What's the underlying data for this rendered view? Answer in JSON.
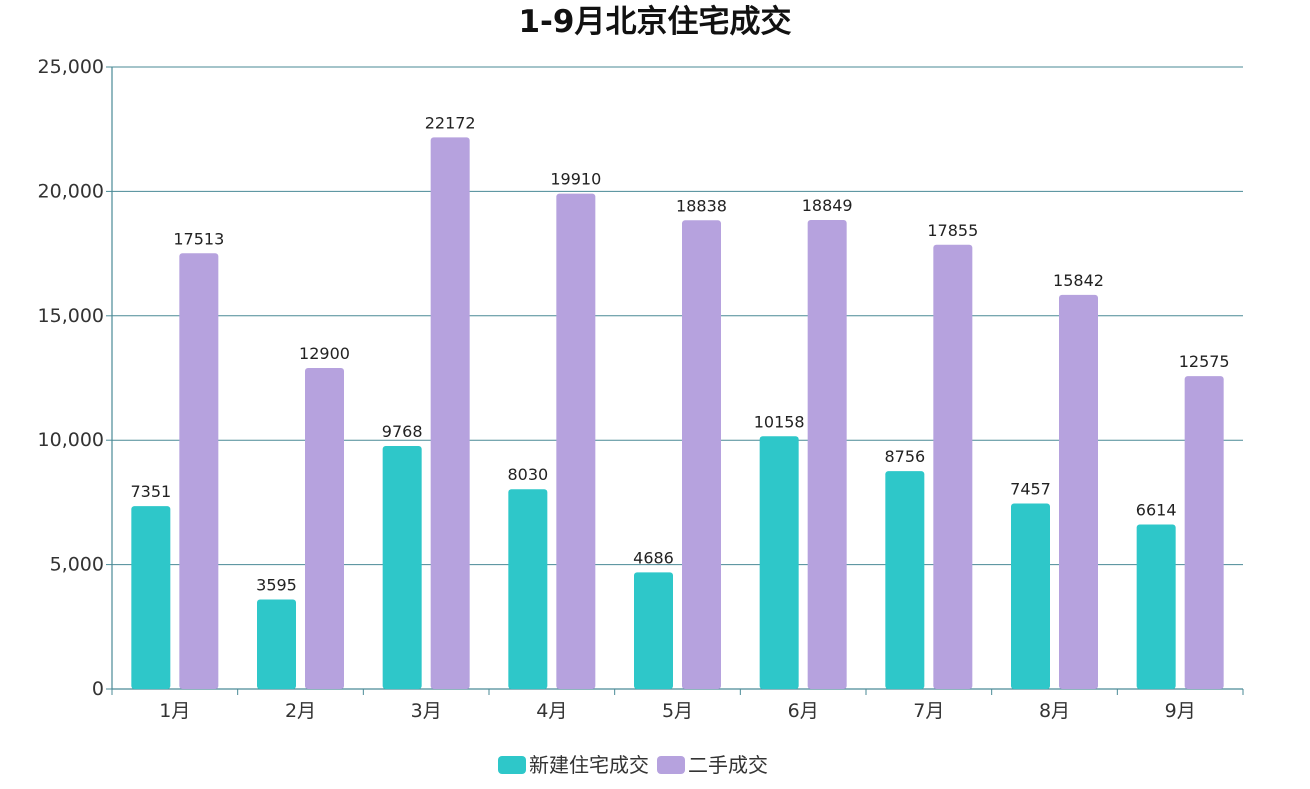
{
  "chart_data": {
    "type": "bar",
    "title": "1-9月北京住宅成交",
    "xlabel": "",
    "ylabel": "",
    "categories": [
      "1月",
      "2月",
      "3月",
      "4月",
      "5月",
      "6月",
      "7月",
      "8月",
      "9月"
    ],
    "series": [
      {
        "name": "新建住宅成交",
        "color": "#2ec7c9",
        "values": [
          7351,
          3595,
          9768,
          8030,
          4686,
          10158,
          8756,
          7457,
          6614
        ]
      },
      {
        "name": "二手成交",
        "color": "#b6a2de",
        "values": [
          17513,
          12900,
          22172,
          19910,
          18838,
          18849,
          17855,
          15842,
          12575
        ]
      }
    ],
    "ylim": [
      0,
      25000
    ],
    "yticks": [
      "0",
      "5,000",
      "10,000",
      "15,000",
      "20,000",
      "25,000"
    ],
    "grid": true,
    "axis_color": "#4a8a96",
    "legend_position": "bottom-center",
    "data_labels": true
  }
}
